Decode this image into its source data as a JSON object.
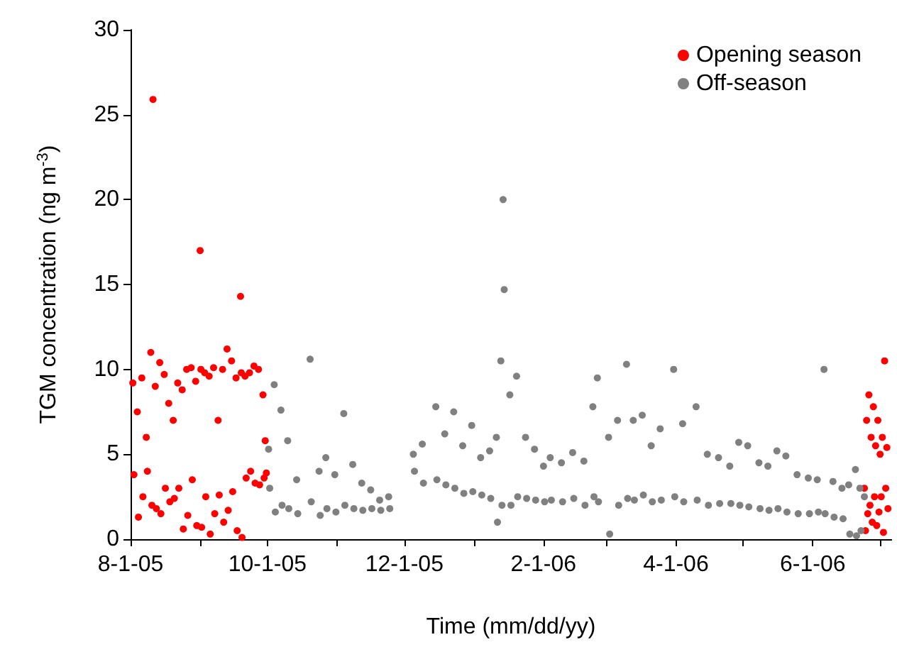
{
  "chart_data": {
    "type": "scatter",
    "xlabel": "Time (mm/dd/yy)",
    "ylabel": "TGM concentration (ng m$^{-3}$)",
    "xlim": [
      "2005-08-01",
      "2006-07-06"
    ],
    "xticks": [
      {
        "value": "2005-08-01",
        "label": "8-1-05"
      },
      {
        "value": "2005-09-01",
        "label": null
      },
      {
        "value": "2005-10-01",
        "label": "10-1-05"
      },
      {
        "value": "2005-11-01",
        "label": null
      },
      {
        "value": "2005-12-01",
        "label": "12-1-05"
      },
      {
        "value": "2006-01-01",
        "label": null
      },
      {
        "value": "2006-02-01",
        "label": "2-1-06"
      },
      {
        "value": "2006-03-01",
        "label": null
      },
      {
        "value": "2006-04-01",
        "label": "4-1-06"
      },
      {
        "value": "2006-05-01",
        "label": null
      },
      {
        "value": "2006-06-01",
        "label": "6-1-06"
      },
      {
        "value": "2006-07-01",
        "label": null
      }
    ],
    "ylim": [
      0,
      30
    ],
    "yticks": [
      0,
      5,
      10,
      15,
      20,
      25,
      30
    ],
    "grid": false,
    "legend": "top right",
    "marker": "circle",
    "series": [
      {
        "name": "Opening season",
        "color": "#ff0000",
        "x": [
          "2005-08-02T00:00",
          "2005-08-02T12:00",
          "2005-08-04T00:00",
          "2005-08-04T12:00",
          "2005-08-06T00:00",
          "2005-08-06T12:00",
          "2005-08-08T00:00",
          "2005-08-08T12:00",
          "2005-08-10T00:00",
          "2005-08-10T12:00",
          "2005-08-11T00:00",
          "2005-08-12T00:00",
          "2005-08-12T12:00",
          "2005-08-14T00:00",
          "2005-08-14T12:00",
          "2005-08-16T00:00",
          "2005-08-16T12:00",
          "2005-08-18T00:00",
          "2005-08-18T12:00",
          "2005-08-20T00:00",
          "2005-08-20T12:00",
          "2005-08-22T00:00",
          "2005-08-22T12:00",
          "2005-08-24T00:00",
          "2005-08-24T12:00",
          "2005-08-26T00:00",
          "2005-08-26T12:00",
          "2005-08-28T00:00",
          "2005-08-28T12:00",
          "2005-08-30T00:00",
          "2005-08-30T12:00",
          "2005-09-01T00:00",
          "2005-09-01T08:00",
          "2005-09-01T16:00",
          "2005-09-03T00:00",
          "2005-09-03T12:00",
          "2005-09-05T00:00",
          "2005-09-05T12:00",
          "2005-09-07T00:00",
          "2005-09-07T12:00",
          "2005-09-09T00:00",
          "2005-09-09T12:00",
          "2005-09-11T00:00",
          "2005-09-11T12:00",
          "2005-09-13T00:00",
          "2005-09-13T12:00",
          "2005-09-15T00:00",
          "2005-09-15T12:00",
          "2005-09-17T00:00",
          "2005-09-17T12:00",
          "2005-09-19T00:00",
          "2005-09-19T08:00",
          "2005-09-19T16:00",
          "2005-09-21T00:00",
          "2005-09-21T12:00",
          "2005-09-23T00:00",
          "2005-09-23T12:00",
          "2005-09-25T00:00",
          "2005-09-25T12:00",
          "2005-09-27T00:00",
          "2005-09-27T12:00",
          "2005-09-29T00:00",
          "2005-09-29T12:00",
          "2005-09-30T00:00",
          "2005-09-30T12:00",
          "2006-06-24T00:00",
          "2006-06-24T12:00",
          "2006-06-25T00:00",
          "2006-06-25T12:00",
          "2006-06-26T00:00",
          "2006-06-26T12:00",
          "2006-06-27T00:00",
          "2006-06-27T12:00",
          "2006-06-28T00:00",
          "2006-06-28T12:00",
          "2006-06-29T00:00",
          "2006-06-29T12:00",
          "2006-06-30T00:00",
          "2006-06-30T12:00",
          "2006-07-01T00:00",
          "2006-07-01T12:00",
          "2006-07-02T00:00",
          "2006-07-02T12:00",
          "2006-07-03T00:00",
          "2006-07-03T12:00",
          "2006-07-04T00:00",
          "2006-07-04T12:00"
        ],
        "values": [
          9.2,
          3.8,
          7.5,
          1.3,
          9.5,
          2.5,
          6,
          4,
          11,
          2,
          25.9,
          9,
          1.8,
          10.4,
          1.5,
          9.7,
          3,
          8,
          2.2,
          7,
          2.4,
          9.2,
          3,
          8.8,
          0.6,
          10,
          1.4,
          10.1,
          3.5,
          9.3,
          0.8,
          17,
          10,
          0.7,
          9.8,
          2.5,
          9.6,
          0.3,
          10.1,
          1.5,
          7,
          2.6,
          10,
          1,
          11.2,
          1.7,
          10.5,
          2.8,
          9.5,
          0.5,
          14.3,
          9.8,
          0.1,
          9.6,
          3.6,
          9.8,
          4,
          10.2,
          3.3,
          10,
          3.2,
          8.5,
          3.6,
          5.8,
          3.9,
          3,
          0.5,
          7,
          1.5,
          8.5,
          2,
          6,
          1,
          7.8,
          2.5,
          5.5,
          0.8,
          7,
          1.6,
          5,
          2.5,
          6,
          0.4,
          10.5,
          3,
          5.4,
          1.8
        ]
      },
      {
        "name": "Off-season",
        "color": "#808080",
        "x": [
          "2005-10-01T12:00",
          "2005-10-02T00:00",
          "2005-10-04T00:00",
          "2005-10-04T12:00",
          "2005-10-07T00:00",
          "2005-10-07T12:00",
          "2005-10-10T00:00",
          "2005-10-10T12:00",
          "2005-10-14T00:00",
          "2005-10-14T12:00",
          "2005-10-20T00:00",
          "2005-10-20T12:00",
          "2005-10-24T00:00",
          "2005-10-24T12:00",
          "2005-10-27T00:00",
          "2005-10-27T12:00",
          "2005-10-31T00:00",
          "2005-10-31T12:00",
          "2005-11-04T00:00",
          "2005-11-04T12:00",
          "2005-11-08T00:00",
          "2005-11-08T12:00",
          "2005-11-12T00:00",
          "2005-11-12T12:00",
          "2005-11-16T00:00",
          "2005-11-16T12:00",
          "2005-11-20T00:00",
          "2005-11-20T12:00",
          "2005-11-24T00:00",
          "2005-11-24T12:00",
          "2005-12-05T00:00",
          "2005-12-05T12:00",
          "2005-12-09T00:00",
          "2005-12-09T12:00",
          "2005-12-15T00:00",
          "2005-12-15T12:00",
          "2005-12-19T00:00",
          "2005-12-19T12:00",
          "2005-12-23T00:00",
          "2005-12-23T12:00",
          "2005-12-27T00:00",
          "2005-12-27T12:00",
          "2005-12-31T00:00",
          "2005-12-31T12:00",
          "2006-01-04T00:00",
          "2006-01-04T12:00",
          "2006-01-08T00:00",
          "2006-01-08T12:00",
          "2006-01-11T00:00",
          "2006-01-11T12:00",
          "2006-01-13T00:00",
          "2006-01-13T12:00",
          "2006-01-14T00:00",
          "2006-01-14T12:00",
          "2006-01-17T00:00",
          "2006-01-17T12:00",
          "2006-01-20T00:00",
          "2006-01-20T12:00",
          "2006-01-24T00:00",
          "2006-01-24T12:00",
          "2006-01-28T00:00",
          "2006-01-28T12:00",
          "2006-02-01T00:00",
          "2006-02-01T12:00",
          "2006-02-04T00:00",
          "2006-02-04T12:00",
          "2006-02-09T00:00",
          "2006-02-09T12:00",
          "2006-02-14T00:00",
          "2006-02-14T12:00",
          "2006-02-19T00:00",
          "2006-02-19T12:00",
          "2006-02-23T00:00",
          "2006-02-23T12:00",
          "2006-02-25T00:00",
          "2006-02-25T12:00",
          "2006-03-02T00:00",
          "2006-03-02T12:00",
          "2006-03-06T00:00",
          "2006-03-06T12:00",
          "2006-03-10T00:00",
          "2006-03-10T12:00",
          "2006-03-13T00:00",
          "2006-03-13T12:00",
          "2006-03-17T00:00",
          "2006-03-17T12:00",
          "2006-03-21T00:00",
          "2006-03-21T12:00",
          "2006-03-25T00:00",
          "2006-03-25T12:00",
          "2006-03-31T00:00",
          "2006-03-31T12:00",
          "2006-04-04T00:00",
          "2006-04-04T12:00",
          "2006-04-10T00:00",
          "2006-04-10T12:00",
          "2006-04-15T00:00",
          "2006-04-15T12:00",
          "2006-04-20T00:00",
          "2006-04-20T12:00",
          "2006-04-25T00:00",
          "2006-04-25T12:00",
          "2006-04-29T00:00",
          "2006-04-29T12:00",
          "2006-05-03T00:00",
          "2006-05-03T12:00",
          "2006-05-08T00:00",
          "2006-05-08T12:00",
          "2006-05-12T00:00",
          "2006-05-12T12:00",
          "2006-05-16T00:00",
          "2006-05-16T12:00",
          "2006-05-20T00:00",
          "2006-05-20T12:00",
          "2006-05-25T00:00",
          "2006-05-25T12:00",
          "2006-05-30T00:00",
          "2006-05-30T12:00",
          "2006-06-03T00:00",
          "2006-06-03T12:00",
          "2006-06-06T00:00",
          "2006-06-06T12:00",
          "2006-06-10T00:00",
          "2006-06-10T12:00",
          "2006-06-14T00:00",
          "2006-06-14T12:00",
          "2006-06-17T00:00",
          "2006-06-17T12:00",
          "2006-06-20T00:00",
          "2006-06-20T12:00",
          "2006-06-22T00:00",
          "2006-06-22T12:00",
          "2006-06-24T00:00"
        ],
        "values": [
          5.3,
          3.0,
          9.1,
          1.6,
          7.6,
          2.0,
          5.8,
          1.8,
          3.5,
          1.5,
          10.6,
          2.2,
          4.0,
          1.4,
          4.8,
          1.8,
          3.8,
          1.6,
          7.4,
          2.0,
          4.4,
          1.8,
          3.3,
          1.7,
          2.9,
          1.8,
          2.3,
          1.7,
          2.5,
          1.8,
          5.0,
          4.0,
          5.6,
          3.3,
          7.8,
          3.5,
          6.2,
          3.2,
          7.5,
          3.0,
          5.5,
          2.7,
          6.7,
          2.8,
          4.8,
          2.6,
          5.2,
          2.4,
          6.0,
          1.0,
          10.5,
          2.0,
          20.0,
          14.7,
          8.5,
          2.0,
          9.6,
          2.5,
          6.0,
          2.4,
          5.3,
          2.3,
          4.3,
          2.2,
          4.8,
          2.3,
          4.5,
          2.2,
          5.1,
          2.4,
          4.6,
          2.0,
          7.8,
          2.5,
          9.5,
          2.2,
          6.0,
          0.3,
          7.0,
          2.0,
          10.3,
          2.4,
          7.0,
          2.3,
          7.3,
          2.6,
          5.5,
          2.2,
          6.5,
          2.3,
          10.0,
          2.5,
          6.8,
          2.2,
          7.8,
          2.3,
          5.0,
          2.0,
          4.8,
          2.1,
          4.3,
          2.1,
          5.7,
          2.0,
          5.5,
          1.9,
          4.5,
          1.8,
          4.3,
          1.7,
          5.2,
          1.8,
          4.9,
          1.6,
          3.8,
          1.5,
          3.6,
          1.5,
          3.5,
          1.6,
          10.0,
          1.5,
          3.4,
          1.3,
          3.0,
          1.2,
          3.2,
          0.3,
          4.1,
          0.2,
          3.0,
          0.5,
          2.5
        ]
      }
    ]
  }
}
